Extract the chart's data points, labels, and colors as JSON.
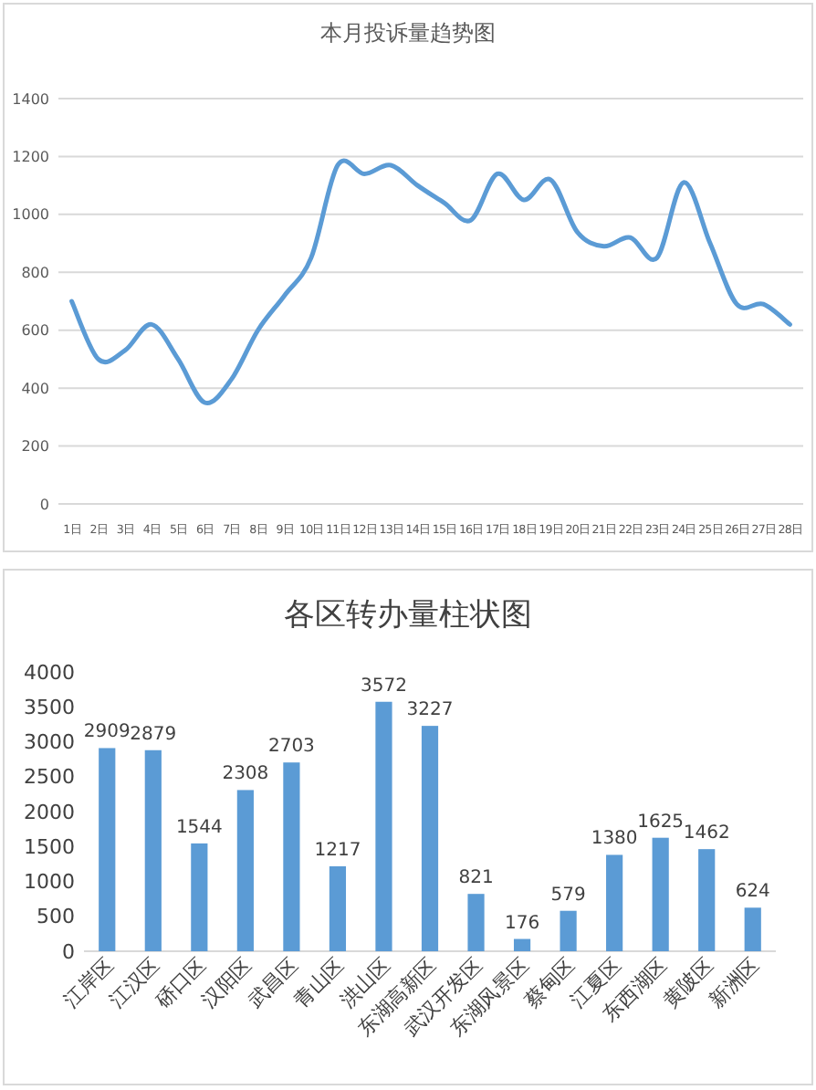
{
  "chart_data": [
    {
      "type": "line",
      "title": "本月投诉量趋势图",
      "categories": [
        "1日",
        "2日",
        "3日",
        "4日",
        "5日",
        "6日",
        "7日",
        "8日",
        "9日",
        "10日",
        "11日",
        "12日",
        "13日",
        "14日",
        "15日",
        "16日",
        "17日",
        "18日",
        "19日",
        "20日",
        "21日",
        "22日",
        "23日",
        "24日",
        "25日",
        "26日",
        "27日",
        "28日"
      ],
      "series": [
        {
          "color": "#5b9bd5",
          "values": [
            700,
            500,
            530,
            620,
            500,
            350,
            430,
            600,
            720,
            850,
            1170,
            1140,
            1170,
            1100,
            1040,
            980,
            1140,
            1050,
            1120,
            940,
            890,
            920,
            850,
            1110,
            900,
            690,
            690,
            620
          ]
        }
      ],
      "ylim": [
        0,
        1400
      ],
      "yticks": [
        0,
        200,
        400,
        600,
        800,
        1000,
        1200,
        1400
      ],
      "grid": "y",
      "marker": "none"
    },
    {
      "type": "bar",
      "title": "各区转办量柱状图",
      "categories": [
        "江岸区",
        "江汉区",
        "硚口区",
        "汉阳区",
        "武昌区",
        "青山区",
        "洪山区",
        "东湖高新区",
        "武汉开发区",
        "东湖风景区",
        "蔡甸区",
        "江夏区",
        "东西湖区",
        "黄陂区",
        "新洲区"
      ],
      "series": [
        {
          "color": "#5b9bd5",
          "values": [
            2909,
            2879,
            1544,
            2308,
            2703,
            1217,
            3572,
            3227,
            821,
            176,
            579,
            1380,
            1625,
            1462,
            624
          ]
        }
      ],
      "ylim": [
        0,
        4000
      ],
      "yticks": [
        0,
        500,
        1000,
        1500,
        2000,
        2500,
        3000,
        3500,
        4000
      ],
      "data_labels": true
    }
  ]
}
